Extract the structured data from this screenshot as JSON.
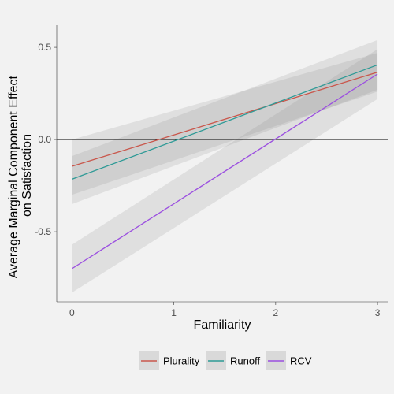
{
  "chart_data": {
    "type": "line",
    "xlabel": "Familiarity",
    "ylabel_lines": [
      "Average Marginal Component Effect",
      "on Satisfaction"
    ],
    "xlim": [
      -0.15,
      3.1
    ],
    "ylim": [
      -0.88,
      0.62
    ],
    "x_ticks": [
      0,
      1,
      2,
      3
    ],
    "x_tick_labels": [
      "0",
      "1",
      "2",
      "3"
    ],
    "y_ticks": [
      -0.5,
      0.0,
      0.5
    ],
    "y_tick_labels": [
      "-0.5",
      "0.0",
      "0.5"
    ],
    "reference_line_y": 0,
    "grid": false,
    "legend_position": "bottom",
    "series": [
      {
        "name": "Plurality",
        "color": "#c9574c",
        "x": [
          0,
          3
        ],
        "y": [
          -0.145,
          0.365
        ],
        "ci_lower": [
          -0.3,
          0.26
        ],
        "ci_upper": [
          0.0,
          0.47
        ]
      },
      {
        "name": "Runoff",
        "color": "#2e9a96",
        "x": [
          0,
          3
        ],
        "y": [
          -0.215,
          0.405
        ],
        "ci_lower": [
          -0.35,
          0.27
        ],
        "ci_upper": [
          -0.09,
          0.54
        ]
      },
      {
        "name": "RCV",
        "color": "#9b4fe0",
        "x": [
          0,
          3
        ],
        "y": [
          -0.7,
          0.355
        ],
        "ci_lower": [
          -0.83,
          0.22
        ],
        "ci_upper": [
          -0.57,
          0.49
        ]
      }
    ]
  }
}
